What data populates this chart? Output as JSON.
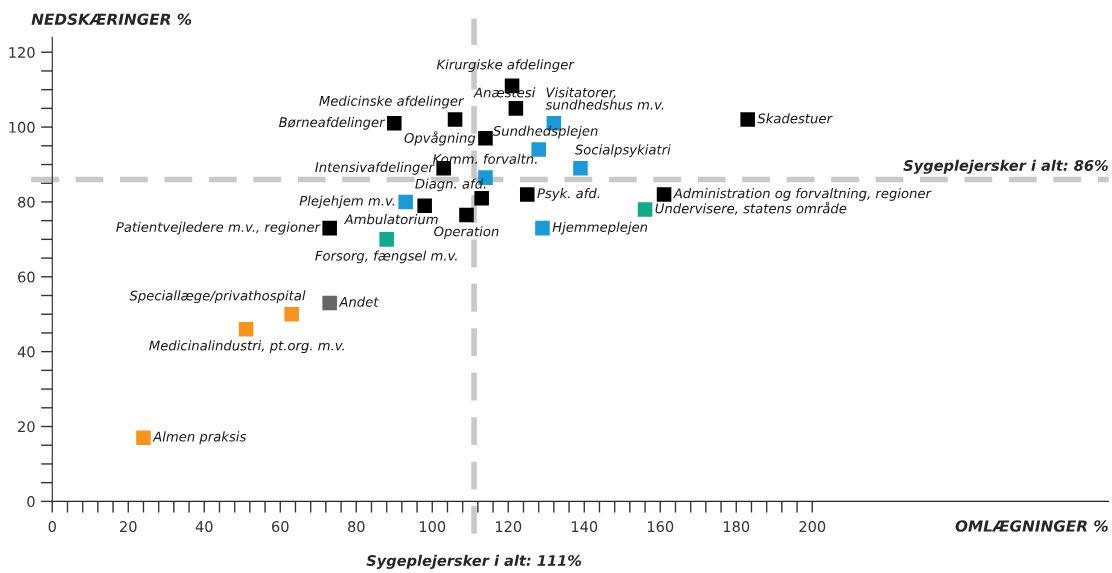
{
  "chart_data": {
    "type": "scatter",
    "xlabel": "OMLÆGNINGER %",
    "ylabel": "NEDSKÆRINGER %",
    "xlim": [
      0,
      278
    ],
    "ylim": [
      0,
      124
    ],
    "xticks": [
      0,
      {
        "value": 4,
        "label": null
      },
      {
        "value": 8,
        "label": null
      },
      {
        "value": 12,
        "label": null
      },
      {
        "value": 16,
        "label": null
      },
      20,
      {
        "value": 24,
        "label": null
      },
      {
        "value": 28,
        "label": null
      },
      {
        "value": 32,
        "label": null
      },
      {
        "value": 36,
        "label": null
      },
      40,
      {
        "value": 44,
        "label": null
      },
      {
        "value": 48,
        "label": null
      },
      {
        "value": 52,
        "label": null
      },
      {
        "value": 56,
        "label": null
      },
      60,
      {
        "value": 64,
        "label": null
      },
      {
        "value": 68,
        "label": null
      },
      {
        "value": 72,
        "label": null
      },
      {
        "value": 76,
        "label": null
      },
      80,
      {
        "value": 84,
        "label": null
      },
      {
        "value": 88,
        "label": null
      },
      {
        "value": 92,
        "label": null
      },
      {
        "value": 96,
        "label": null
      },
      100,
      {
        "value": 104,
        "label": null
      },
      {
        "value": 108,
        "label": null
      },
      {
        "value": 112,
        "label": null
      },
      {
        "value": 116,
        "label": null
      },
      120,
      {
        "value": 124,
        "label": null
      },
      {
        "value": 128,
        "label": null
      },
      {
        "value": 132,
        "label": null
      },
      {
        "value": 136,
        "label": null
      },
      140,
      {
        "value": 144,
        "label": null
      },
      {
        "value": 148,
        "label": null
      },
      {
        "value": 152,
        "label": null
      },
      {
        "value": 156,
        "label": null
      },
      160,
      {
        "value": 164,
        "label": null
      },
      {
        "value": 168,
        "label": null
      },
      {
        "value": 172,
        "label": null
      },
      {
        "value": 176,
        "label": null
      },
      180,
      {
        "value": 184,
        "label": null
      },
      {
        "value": 188,
        "label": null
      },
      {
        "value": 192,
        "label": null
      },
      {
        "value": 196,
        "label": null
      },
      200
    ],
    "yticks": [
      0,
      {
        "value": 5,
        "label": null
      },
      {
        "value": 10,
        "label": null
      },
      {
        "value": 15,
        "label": null
      },
      20,
      {
        "value": 25,
        "label": null
      },
      {
        "value": 30,
        "label": null
      },
      {
        "value": 35,
        "label": null
      },
      40,
      {
        "value": 45,
        "label": null
      },
      {
        "value": 50,
        "label": null
      },
      {
        "value": 55,
        "label": null
      },
      60,
      {
        "value": 65,
        "label": null
      },
      {
        "value": 70,
        "label": null
      },
      {
        "value": 75,
        "label": null
      },
      80,
      {
        "value": 85,
        "label": null
      },
      {
        "value": 90,
        "label": null
      },
      {
        "value": 95,
        "label": null
      },
      100,
      {
        "value": 105,
        "label": null
      },
      {
        "value": 110,
        "label": null
      },
      {
        "value": 115,
        "label": null
      },
      120
    ],
    "marker": "square",
    "grid": false,
    "legend": false,
    "series": [
      {
        "x": [
          121,
          122,
          132,
          183,
          106,
          90,
          114,
          128,
          139,
          103,
          114,
          113,
          125,
          161,
          156,
          93,
          98,
          109,
          73,
          129,
          88,
          73,
          63,
          51,
          24
        ],
        "values": [
          111,
          105,
          101,
          102,
          102,
          101,
          97,
          94,
          89,
          89,
          86.5,
          81,
          82,
          82,
          78,
          80,
          79,
          76.5,
          73,
          73,
          70,
          53,
          50,
          46,
          17
        ],
        "colors": [
          "#000000",
          "#000000",
          "#1a9ad6",
          "#000000",
          "#000000",
          "#000000",
          "#000000",
          "#1a9ad6",
          "#1a9ad6",
          "#000000",
          "#1a9ad6",
          "#000000",
          "#000000",
          "#000000",
          "#13a98a",
          "#1a9ad6",
          "#000000",
          "#000000",
          "#000000",
          "#1a9ad6",
          "#13a98a",
          "#666666",
          "#f7941d",
          "#f7941d",
          "#f7941d"
        ]
      }
    ],
    "annotations": [
      {
        "text": "Kirurgiske afdelinger",
        "x": 121,
        "y": 111
      },
      {
        "text": "Anæstesi",
        "x": 122,
        "y": 105
      },
      {
        "text": "Visitatorer,\nsundhedshus m.v.",
        "x": 132,
        "y": 101
      },
      {
        "text": "Skadestuer",
        "x": 183,
        "y": 102
      },
      {
        "text": "Medicinske afdelinger",
        "x": 106,
        "y": 102
      },
      {
        "text": "Børneafdelinger",
        "x": 90,
        "y": 101
      },
      {
        "text": "Opvågning",
        "x": 114,
        "y": 97
      },
      {
        "text": "Sundhedsplejen",
        "x": 128,
        "y": 94
      },
      {
        "text": "Socialpsykiatri",
        "x": 139,
        "y": 89
      },
      {
        "text": "Intensivafdelinger",
        "x": 103,
        "y": 89
      },
      {
        "text": "Komm. forvaltn.",
        "x": 114,
        "y": 86.5
      },
      {
        "text": "Diagn. afd.",
        "x": 113,
        "y": 81
      },
      {
        "text": "Psyk. afd.",
        "x": 125,
        "y": 82
      },
      {
        "text": "Administration og forvaltning, regioner",
        "x": 161,
        "y": 82
      },
      {
        "text": "Undervisere, statens område",
        "x": 156,
        "y": 78
      },
      {
        "text": "Plejehjem m.v.",
        "x": 93,
        "y": 80
      },
      {
        "text": "Ambulatorium",
        "x": 98,
        "y": 79
      },
      {
        "text": "Operation",
        "x": 109,
        "y": 76.5
      },
      {
        "text": "Patientvejledere m.v., regioner",
        "x": 73,
        "y": 73
      },
      {
        "text": "Hjemmeplejen",
        "x": 129,
        "y": 73
      },
      {
        "text": "Forsorg, fængsel m.v.",
        "x": 88,
        "y": 70
      },
      {
        "text": "Andet",
        "x": 73,
        "y": 53
      },
      {
        "text": "Speciallæge/privathospital",
        "x": 63,
        "y": 50
      },
      {
        "text": "Medicinalindustri, pt.org. m.v.",
        "x": 51,
        "y": 46
      },
      {
        "text": "Almen praksis",
        "x": 24,
        "y": 17
      }
    ],
    "ref_lines": [
      {
        "axis": "y",
        "value": 86,
        "label": "Sygeplejersker i alt: 86%",
        "color": "#c8c8c8",
        "line_style": "dashed"
      },
      {
        "axis": "x",
        "value": 111,
        "label": "Sygeplejersker i alt: 111%",
        "color": "#c8c8c8",
        "line_style": "dashed"
      }
    ]
  }
}
